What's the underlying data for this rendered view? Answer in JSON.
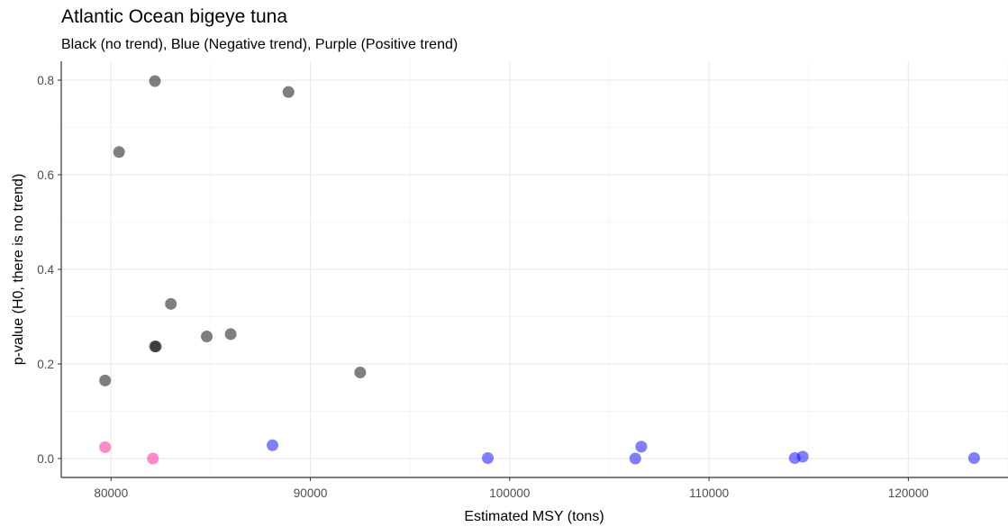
{
  "chart_data": {
    "type": "scatter",
    "title": "Atlantic Ocean bigeye tuna",
    "subtitle": "Black (no trend), Blue (Negative trend), Purple (Positive trend)",
    "xlabel": "Estimated MSY (tons)",
    "ylabel": "p-value (H0, there is no trend)",
    "xlim": [
      77500,
      125000
    ],
    "ylim": [
      -0.04,
      0.84
    ],
    "x_ticks": [
      80000,
      90000,
      100000,
      110000,
      120000
    ],
    "y_ticks": [
      0.0,
      0.2,
      0.4,
      0.6,
      0.8
    ],
    "x_tick_labels": [
      "80000",
      "90000",
      "100000",
      "110000",
      "120000"
    ],
    "y_tick_labels": [
      "0.0",
      "0.2",
      "0.4",
      "0.6",
      "0.8"
    ],
    "grid": true,
    "groups": [
      {
        "color": "#000000",
        "points": [
          {
            "x": 82200,
            "y": 0.798
          },
          {
            "x": 88900,
            "y": 0.775
          },
          {
            "x": 80400,
            "y": 0.648
          },
          {
            "x": 83000,
            "y": 0.327
          },
          {
            "x": 86000,
            "y": 0.263
          },
          {
            "x": 84800,
            "y": 0.258
          },
          {
            "x": 82200,
            "y": 0.237
          },
          {
            "x": 82250,
            "y": 0.237
          },
          {
            "x": 92500,
            "y": 0.182
          },
          {
            "x": 79700,
            "y": 0.165
          }
        ]
      },
      {
        "color": "#0000ff",
        "points": [
          {
            "x": 88100,
            "y": 0.028
          },
          {
            "x": 106600,
            "y": 0.025
          },
          {
            "x": 98900,
            "y": 0.001
          },
          {
            "x": 106300,
            "y": 0.0
          },
          {
            "x": 114300,
            "y": 0.001
          },
          {
            "x": 114700,
            "y": 0.004
          },
          {
            "x": 123300,
            "y": 0.001
          }
        ]
      },
      {
        "color": "#ff1493",
        "points": [
          {
            "x": 79700,
            "y": 0.024
          },
          {
            "x": 82100,
            "y": 0.0
          }
        ]
      }
    ]
  }
}
